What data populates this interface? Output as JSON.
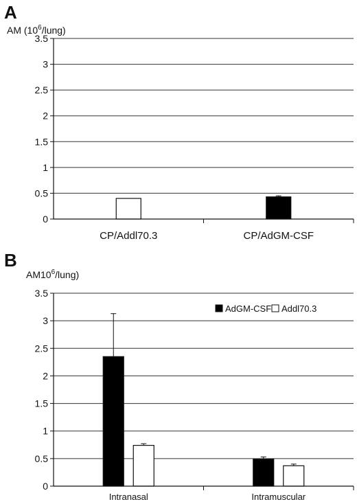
{
  "chart_data": [
    {
      "panel_label": "A",
      "type": "bar",
      "title": "",
      "ylabel_prefix": "AM (10",
      "ylabel_sup": "6",
      "ylabel_suffix": "/lung)",
      "xlabel": "",
      "ylim": [
        0,
        3.5
      ],
      "yticks": [
        0,
        0.5,
        1,
        1.5,
        2,
        2.5,
        3,
        3.5
      ],
      "grid": true,
      "categories": [
        "CP/Addl70.3",
        "CP/AdGM-CSF"
      ],
      "values": [
        0.4,
        0.43
      ],
      "errors": [
        0,
        0.02
      ],
      "bar_colors": [
        "#ffffff",
        "#000000"
      ]
    },
    {
      "panel_label": "B",
      "type": "bar",
      "title": "",
      "ylabel_prefix": "AM10",
      "ylabel_sup": "6",
      "ylabel_suffix": "/lung)",
      "xlabel": "",
      "ylim": [
        0,
        3.5
      ],
      "yticks": [
        0,
        0.5,
        1,
        1.5,
        2,
        2.5,
        3,
        3.5
      ],
      "grid": true,
      "legend_position": "top-right",
      "categories": [
        "Intranasal",
        "Intramuscular"
      ],
      "series": [
        {
          "name": "AdGM-CSF",
          "color": "#000000",
          "values": [
            2.35,
            0.49
          ],
          "errors": [
            0.78,
            0.04
          ]
        },
        {
          "name": "Addl70.3",
          "color": "#ffffff",
          "values": [
            0.74,
            0.37
          ],
          "errors": [
            0.03,
            0.03
          ]
        }
      ]
    }
  ]
}
